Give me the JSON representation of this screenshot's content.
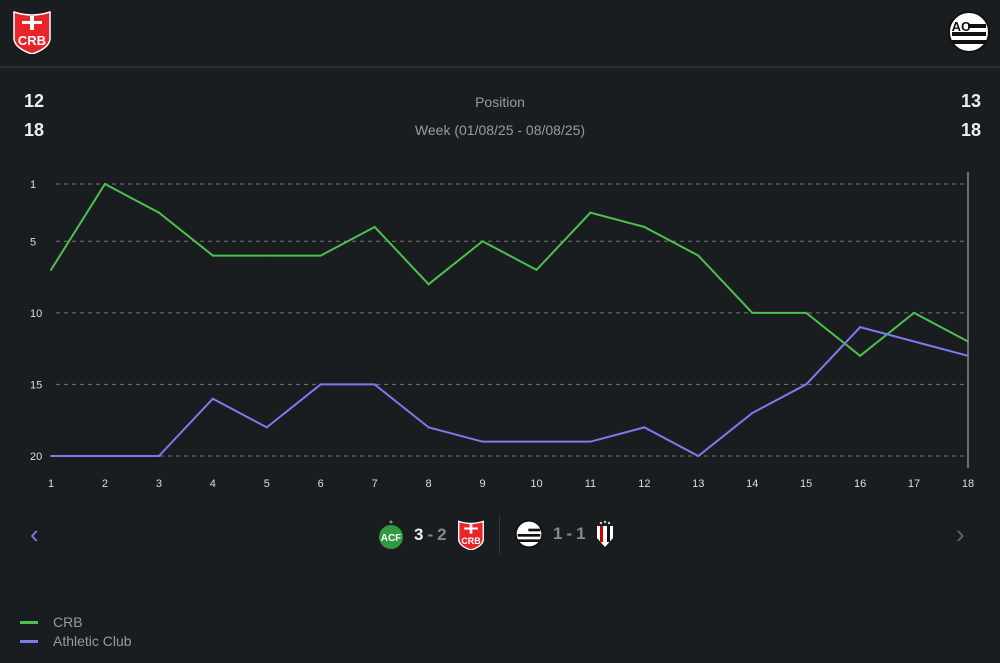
{
  "header": {
    "home_team": "CRB",
    "away_team": "Athletic Club",
    "home_logo_text": "CRB",
    "away_logo_text": "AC"
  },
  "stats": {
    "home_position": "12",
    "home_week": "18",
    "away_position": "13",
    "away_week": "18",
    "label_position": "Position",
    "label_week": "Week (01/08/25 - 08/08/25)"
  },
  "matches": [
    {
      "home": "Chapecoense",
      "score_home": "3",
      "score_away": "2",
      "away": "CRB"
    },
    {
      "home": "Athletic Club",
      "score_home": "1",
      "score_away": "1",
      "away": "Atletico GO"
    }
  ],
  "colors": {
    "crb": "#4cc04c",
    "athletic": "#7b7bf0"
  },
  "chart_data": {
    "type": "line",
    "x": [
      1,
      2,
      3,
      4,
      5,
      6,
      7,
      8,
      9,
      10,
      11,
      12,
      13,
      14,
      15,
      16,
      17,
      18
    ],
    "y_ticks": [
      1,
      5,
      10,
      15,
      20
    ],
    "ylim": [
      1,
      20
    ],
    "y_inverted": true,
    "grid": true,
    "legend_placement": "bottom-left",
    "series": [
      {
        "name": "CRB",
        "color": "#4cc04c",
        "values": [
          7,
          1,
          3,
          6,
          6,
          6,
          4,
          8,
          5,
          7,
          3,
          4,
          6,
          10,
          10,
          13,
          10,
          12
        ]
      },
      {
        "name": "Athletic Club",
        "color": "#7b7bf0",
        "values": [
          20,
          20,
          20,
          16,
          18,
          15,
          15,
          18,
          19,
          19,
          19,
          18,
          20,
          17,
          15,
          11,
          12,
          13
        ]
      }
    ]
  }
}
